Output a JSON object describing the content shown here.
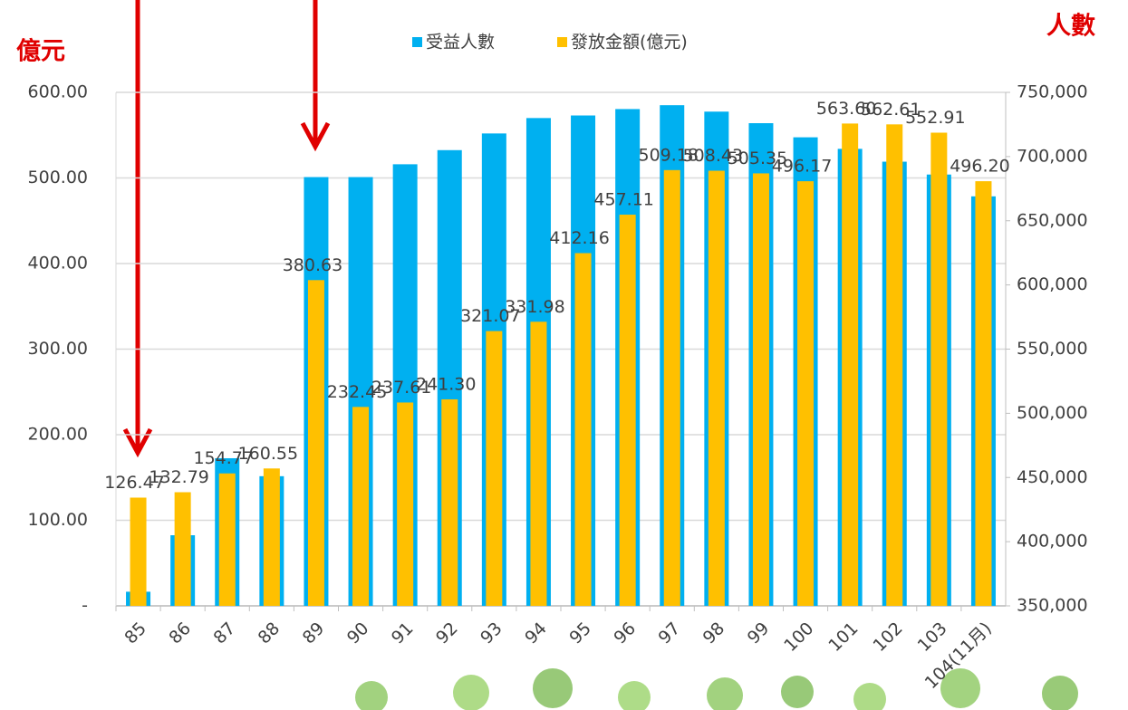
{
  "chart_data": {
    "type": "bar",
    "y_label": "億元",
    "y2_label": "人數",
    "categories": [
      "85",
      "86",
      "87",
      "88",
      "89",
      "90",
      "91",
      "92",
      "93",
      "94",
      "95",
      "96",
      "97",
      "98",
      "99",
      "100",
      "101",
      "102",
      "103",
      "104(11月)"
    ],
    "series": [
      {
        "name": "受益人數",
        "color": "#00b0f0",
        "axis": "y2",
        "values": [
          361000,
          405000,
          465000,
          451000,
          684000,
          684000,
          694000,
          705000,
          718000,
          730000,
          732000,
          737000,
          740000,
          735000,
          726000,
          715000,
          706000,
          696000,
          686000,
          669000
        ]
      },
      {
        "name": "發放金額(億元)",
        "color": "#ffc000",
        "values": [
          126.47,
          132.79,
          154.77,
          160.55,
          380.63,
          232.45,
          237.61,
          241.3,
          321.07,
          331.98,
          412.16,
          457.11,
          509.18,
          508.43,
          505.35,
          496.17,
          563.6,
          562.61,
          552.91,
          496.2
        ],
        "value_labels": [
          "126.47",
          "132.79",
          "154.77",
          "160.55",
          "380.63",
          "232.45",
          "237.61",
          "241.30",
          "321.07",
          "331.98",
          "412.16",
          "457.11",
          "509.18",
          "508.43",
          "505.35",
          "496.17",
          "563.60",
          "562.61",
          "552.91",
          "496.20"
        ]
      }
    ],
    "ylim": [
      0,
      600
    ],
    "yticks": [
      {
        "value": 0,
        "label": "-"
      },
      {
        "value": 100,
        "label": "100.00"
      },
      {
        "value": 200,
        "label": "200.00"
      },
      {
        "value": 300,
        "label": "300.00"
      },
      {
        "value": 400,
        "label": "400.00"
      },
      {
        "value": 500,
        "label": "500.00"
      },
      {
        "value": 600,
        "label": "600.00"
      }
    ],
    "y2lim": [
      350000,
      750000
    ],
    "y2ticks": [
      {
        "value": 350000,
        "label": "350,000"
      },
      {
        "value": 400000,
        "label": "400,000"
      },
      {
        "value": 450000,
        "label": "450,000"
      },
      {
        "value": 500000,
        "label": "500,000"
      },
      {
        "value": 550000,
        "label": "550,000"
      },
      {
        "value": 600000,
        "label": "600,000"
      },
      {
        "value": 650000,
        "label": "650,000"
      },
      {
        "value": 700000,
        "label": "700,000"
      },
      {
        "value": 750000,
        "label": "750,000"
      }
    ],
    "grid": true
  }
}
